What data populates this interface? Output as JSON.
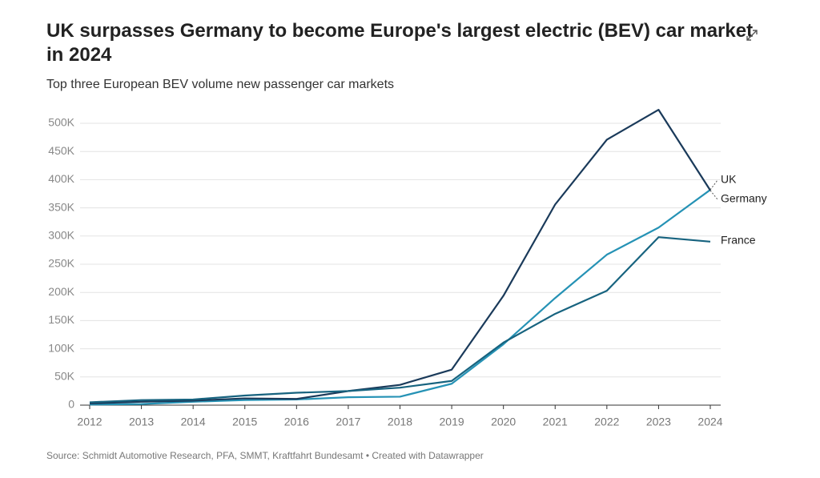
{
  "chart_data": {
    "type": "line",
    "title": "UK surpasses Germany to become Europe's largest electric (BEV) car market in 2024",
    "subtitle": "Top three European BEV volume new passenger car markets",
    "source": "Source: Schmidt Automotive Research, PFA, SMMT, Kraftfahrt Bundesamt • Created with Datawrapper",
    "x": [
      2012,
      2013,
      2014,
      2015,
      2016,
      2017,
      2018,
      2019,
      2020,
      2021,
      2022,
      2023,
      2024
    ],
    "xlim": [
      2012,
      2024
    ],
    "xticks": [
      2012,
      2013,
      2014,
      2015,
      2016,
      2017,
      2018,
      2019,
      2020,
      2021,
      2022,
      2023,
      2024
    ],
    "ylim": [
      0,
      500000
    ],
    "yticks": [
      0,
      {
        "value": 50000,
        "label": "50K"
      },
      {
        "value": 100000,
        "label": "100K"
      },
      {
        "value": 150000,
        "label": "150K"
      },
      {
        "value": 200000,
        "label": "200K"
      },
      {
        "value": 250000,
        "label": "250K"
      },
      {
        "value": 300000,
        "label": "300K"
      },
      {
        "value": 350000,
        "label": "350K"
      },
      {
        "value": 400000,
        "label": "400K"
      },
      {
        "value": 450000,
        "label": "450K"
      },
      {
        "value": 500000,
        "label": "500K"
      }
    ],
    "grid": true,
    "series": [
      {
        "name": "UK",
        "color": "#2592b5",
        "values": [
          1000,
          2000,
          6000,
          9000,
          10000,
          14000,
          15000,
          38000,
          108000,
          190000,
          267000,
          315000,
          382000
        ]
      },
      {
        "name": "Germany",
        "color": "#1a3a5a",
        "values": [
          3000,
          6000,
          8000,
          12000,
          11000,
          25000,
          36000,
          63000,
          194000,
          356000,
          471000,
          524000,
          381000
        ]
      },
      {
        "name": "France",
        "color": "#17637f",
        "values": [
          5000,
          9000,
          10000,
          17000,
          22000,
          25000,
          31000,
          43000,
          111000,
          162000,
          203000,
          298000,
          290000
        ]
      }
    ]
  }
}
